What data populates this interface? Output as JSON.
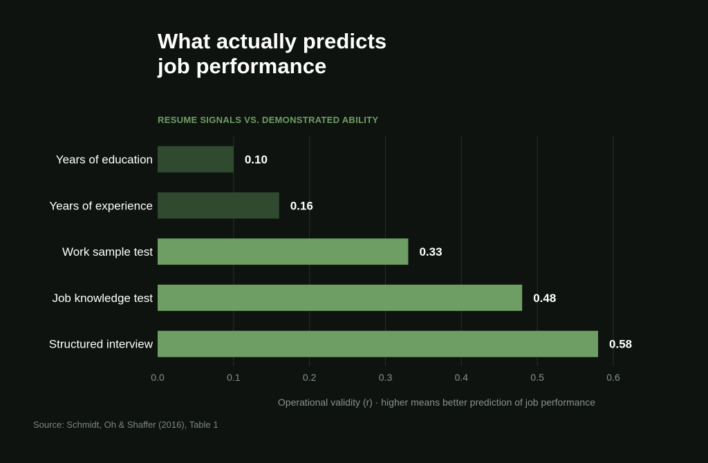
{
  "title_lines": [
    "What actually predicts",
    "job performance"
  ],
  "subtitle": "RESUME SIGNALS VS. DEMONSTRATED ABILITY",
  "source": "Source: Schmidt, Oh & Shaffer (2016), Table 1",
  "colors": {
    "background": "#0e130f",
    "resume_signal_bar": "#2f4a2f",
    "demonstrated_ability_bar": "#6f9e64",
    "grid": "#263027",
    "subtitle": "#6f9e64"
  },
  "chart_data": {
    "type": "bar",
    "orientation": "horizontal",
    "title": "What actually predicts job performance",
    "subtitle": "RESUME SIGNALS VS. DEMONSTRATED ABILITY",
    "categories": [
      "Years of education",
      "Years of experience",
      "Work sample test",
      "Job knowledge test",
      "Structured interview"
    ],
    "values": [
      0.1,
      0.16,
      0.33,
      0.48,
      0.58
    ],
    "value_labels": [
      "0.10",
      "0.16",
      "0.33",
      "0.48",
      "0.58"
    ],
    "groups": [
      "resume",
      "resume",
      "ability",
      "ability",
      "ability"
    ],
    "xlabel": "Operational validity (r)  ·  higher means better prediction of job performance",
    "xlim": [
      0,
      0.6
    ],
    "xticks": [
      0.0,
      0.1,
      0.2,
      0.3,
      0.4,
      0.5,
      0.6
    ],
    "xtick_labels": [
      "0.0",
      "0.1",
      "0.2",
      "0.3",
      "0.4",
      "0.5",
      "0.6"
    ],
    "grid": "vertical",
    "legend": "none"
  }
}
